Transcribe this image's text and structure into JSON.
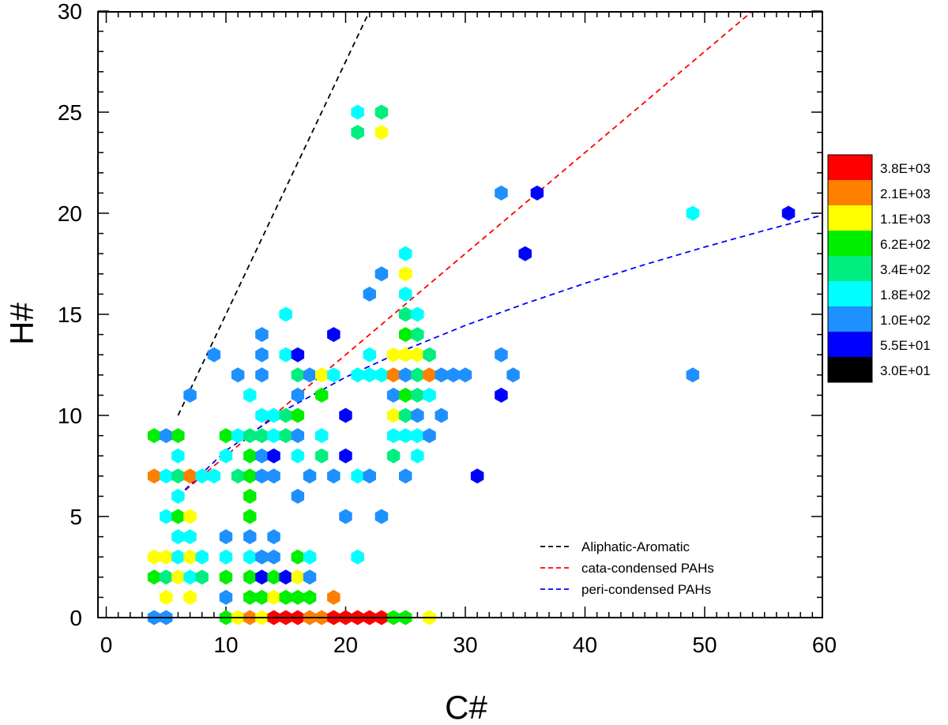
{
  "chart_data": {
    "type": "scatter",
    "subtype": "hexbin",
    "xlabel": "C#",
    "ylabel": "H#",
    "xlim": [
      0,
      60
    ],
    "ylim": [
      0,
      30
    ],
    "x_ticks": [
      0,
      10,
      20,
      30,
      40,
      50,
      60
    ],
    "y_ticks": [
      0,
      5,
      10,
      15,
      20,
      25,
      30
    ],
    "x_tick_labels": [
      "0",
      "10",
      "20",
      "30",
      "40",
      "50",
      "60"
    ],
    "y_tick_labels": [
      "0",
      "5",
      "10",
      "15",
      "20",
      "25",
      "30"
    ],
    "colorbar": {
      "labels": [
        "3.8E+03",
        "2.1E+03",
        "1.1E+03",
        "6.2E+02",
        "3.4E+02",
        "1.8E+02",
        "1.0E+02",
        "5.5E+01",
        "3.0E+01"
      ],
      "colors": [
        "#ff0000",
        "#ff8000",
        "#ffff00",
        "#00ee00",
        "#00ee80",
        "#00ffff",
        "#1e90ff",
        "#0000ff",
        "#000000"
      ]
    },
    "lines": [
      {
        "name": "Aliphatic-Aromatic",
        "color": "#000000",
        "x": [
          6,
          22
        ],
        "y": [
          10,
          30
        ]
      },
      {
        "name": "cata-condensed PAHs",
        "color": "#ff0000",
        "x": [
          6,
          54
        ],
        "y": [
          6,
          30
        ]
      },
      {
        "name": "peri-condensed PAHs",
        "color": "#0000ff",
        "x": [
          6,
          10,
          15,
          20,
          25,
          30,
          35,
          40,
          45,
          50,
          55,
          60
        ],
        "y": [
          6,
          8.26,
          10.29,
          11.89,
          13.25,
          14.45,
          15.53,
          16.53,
          17.46,
          18.33,
          19.15,
          19.93
        ]
      }
    ],
    "legend": {
      "position": "bottom-right",
      "entries": [
        "Aliphatic-Aromatic",
        "cata-condensed PAHs",
        "peri-condensed PAHs"
      ]
    },
    "color_key": {
      "r": "#ff0000",
      "o": "#ff8000",
      "y": "#ffff00",
      "g": "#00ee00",
      "t": "#00ee80",
      "c": "#00ffff",
      "l": "#1e90ff",
      "b": "#0000ff"
    },
    "points": [
      [
        4,
        0,
        "l"
      ],
      [
        5,
        0,
        "l"
      ],
      [
        10,
        0,
        "g"
      ],
      [
        11,
        0,
        "y"
      ],
      [
        12,
        0,
        "o"
      ],
      [
        13,
        0,
        "y"
      ],
      [
        14,
        0,
        "r"
      ],
      [
        15,
        0,
        "r"
      ],
      [
        16,
        0,
        "r"
      ],
      [
        17,
        0,
        "o"
      ],
      [
        18,
        0,
        "o"
      ],
      [
        19,
        0,
        "r"
      ],
      [
        20,
        0,
        "r"
      ],
      [
        21,
        0,
        "r"
      ],
      [
        22,
        0,
        "r"
      ],
      [
        23,
        0,
        "r"
      ],
      [
        24,
        0,
        "g"
      ],
      [
        25,
        0,
        "g"
      ],
      [
        27,
        0,
        "y"
      ],
      [
        5,
        1,
        "y"
      ],
      [
        7,
        1,
        "y"
      ],
      [
        10,
        1,
        "l"
      ],
      [
        12,
        1,
        "g"
      ],
      [
        13,
        1,
        "g"
      ],
      [
        14,
        1,
        "y"
      ],
      [
        15,
        1,
        "g"
      ],
      [
        16,
        1,
        "g"
      ],
      [
        17,
        1,
        "g"
      ],
      [
        19,
        1,
        "o"
      ],
      [
        4,
        2,
        "g"
      ],
      [
        5,
        2,
        "t"
      ],
      [
        6,
        2,
        "y"
      ],
      [
        7,
        2,
        "c"
      ],
      [
        8,
        2,
        "t"
      ],
      [
        10,
        2,
        "g"
      ],
      [
        12,
        2,
        "g"
      ],
      [
        13,
        2,
        "b"
      ],
      [
        14,
        2,
        "g"
      ],
      [
        15,
        2,
        "b"
      ],
      [
        16,
        2,
        "y"
      ],
      [
        17,
        2,
        "l"
      ],
      [
        4,
        3,
        "y"
      ],
      [
        5,
        3,
        "y"
      ],
      [
        6,
        3,
        "c"
      ],
      [
        7,
        3,
        "y"
      ],
      [
        8,
        3,
        "c"
      ],
      [
        10,
        3,
        "c"
      ],
      [
        12,
        3,
        "c"
      ],
      [
        13,
        3,
        "l"
      ],
      [
        14,
        3,
        "l"
      ],
      [
        16,
        3,
        "g"
      ],
      [
        17,
        3,
        "c"
      ],
      [
        21,
        3,
        "c"
      ],
      [
        6,
        4,
        "c"
      ],
      [
        7,
        4,
        "c"
      ],
      [
        10,
        4,
        "l"
      ],
      [
        12,
        4,
        "l"
      ],
      [
        14,
        4,
        "l"
      ],
      [
        5,
        5,
        "c"
      ],
      [
        6,
        5,
        "g"
      ],
      [
        7,
        5,
        "y"
      ],
      [
        12,
        5,
        "g"
      ],
      [
        20,
        5,
        "l"
      ],
      [
        23,
        5,
        "l"
      ],
      [
        6,
        6,
        "c"
      ],
      [
        12,
        6,
        "g"
      ],
      [
        16,
        6,
        "l"
      ],
      [
        4,
        7,
        "o"
      ],
      [
        5,
        7,
        "c"
      ],
      [
        6,
        7,
        "t"
      ],
      [
        7,
        7,
        "o"
      ],
      [
        8,
        7,
        "c"
      ],
      [
        9,
        7,
        "c"
      ],
      [
        11,
        7,
        "t"
      ],
      [
        12,
        7,
        "g"
      ],
      [
        13,
        7,
        "l"
      ],
      [
        14,
        7,
        "l"
      ],
      [
        17,
        7,
        "l"
      ],
      [
        19,
        7,
        "l"
      ],
      [
        21,
        7,
        "c"
      ],
      [
        22,
        7,
        "l"
      ],
      [
        25,
        7,
        "l"
      ],
      [
        31,
        7,
        "b"
      ],
      [
        6,
        8,
        "c"
      ],
      [
        10,
        8,
        "c"
      ],
      [
        12,
        8,
        "g"
      ],
      [
        13,
        8,
        "l"
      ],
      [
        14,
        8,
        "b"
      ],
      [
        16,
        8,
        "c"
      ],
      [
        18,
        8,
        "t"
      ],
      [
        20,
        8,
        "b"
      ],
      [
        24,
        8,
        "t"
      ],
      [
        26,
        8,
        "c"
      ],
      [
        4,
        9,
        "g"
      ],
      [
        5,
        9,
        "l"
      ],
      [
        6,
        9,
        "g"
      ],
      [
        10,
        9,
        "g"
      ],
      [
        11,
        9,
        "c"
      ],
      [
        12,
        9,
        "t"
      ],
      [
        13,
        9,
        "t"
      ],
      [
        14,
        9,
        "c"
      ],
      [
        15,
        9,
        "t"
      ],
      [
        16,
        9,
        "l"
      ],
      [
        18,
        9,
        "c"
      ],
      [
        24,
        9,
        "c"
      ],
      [
        25,
        9,
        "c"
      ],
      [
        26,
        9,
        "c"
      ],
      [
        27,
        9,
        "l"
      ],
      [
        13,
        10,
        "c"
      ],
      [
        14,
        10,
        "c"
      ],
      [
        15,
        10,
        "t"
      ],
      [
        16,
        10,
        "g"
      ],
      [
        20,
        10,
        "b"
      ],
      [
        24,
        10,
        "y"
      ],
      [
        25,
        10,
        "t"
      ],
      [
        26,
        10,
        "l"
      ],
      [
        28,
        10,
        "l"
      ],
      [
        7,
        11,
        "l"
      ],
      [
        12,
        11,
        "c"
      ],
      [
        16,
        11,
        "l"
      ],
      [
        18,
        11,
        "g"
      ],
      [
        24,
        11,
        "l"
      ],
      [
        25,
        11,
        "g"
      ],
      [
        26,
        11,
        "t"
      ],
      [
        27,
        11,
        "c"
      ],
      [
        33,
        11,
        "b"
      ],
      [
        11,
        12,
        "l"
      ],
      [
        13,
        12,
        "l"
      ],
      [
        16,
        12,
        "t"
      ],
      [
        17,
        12,
        "l"
      ],
      [
        18,
        12,
        "y"
      ],
      [
        19,
        12,
        "c"
      ],
      [
        21,
        12,
        "c"
      ],
      [
        22,
        12,
        "c"
      ],
      [
        23,
        12,
        "c"
      ],
      [
        24,
        12,
        "o"
      ],
      [
        25,
        12,
        "l"
      ],
      [
        26,
        12,
        "t"
      ],
      [
        27,
        12,
        "o"
      ],
      [
        28,
        12,
        "l"
      ],
      [
        29,
        12,
        "l"
      ],
      [
        30,
        12,
        "l"
      ],
      [
        34,
        12,
        "l"
      ],
      [
        49,
        12,
        "l"
      ],
      [
        9,
        13,
        "l"
      ],
      [
        13,
        13,
        "l"
      ],
      [
        15,
        13,
        "c"
      ],
      [
        16,
        13,
        "b"
      ],
      [
        22,
        13,
        "c"
      ],
      [
        24,
        13,
        "y"
      ],
      [
        25,
        13,
        "y"
      ],
      [
        26,
        13,
        "y"
      ],
      [
        27,
        13,
        "t"
      ],
      [
        33,
        13,
        "l"
      ],
      [
        13,
        14,
        "l"
      ],
      [
        19,
        14,
        "b"
      ],
      [
        25,
        14,
        "g"
      ],
      [
        26,
        14,
        "t"
      ],
      [
        15,
        15,
        "c"
      ],
      [
        25,
        15,
        "t"
      ],
      [
        26,
        15,
        "c"
      ],
      [
        22,
        16,
        "l"
      ],
      [
        25,
        16,
        "c"
      ],
      [
        23,
        17,
        "l"
      ],
      [
        25,
        17,
        "y"
      ],
      [
        25,
        18,
        "c"
      ],
      [
        35,
        18,
        "b"
      ],
      [
        33,
        21,
        "l"
      ],
      [
        36,
        21,
        "b"
      ],
      [
        49,
        20,
        "c"
      ],
      [
        57,
        20,
        "b"
      ],
      [
        21,
        24,
        "t"
      ],
      [
        23,
        24,
        "y"
      ],
      [
        21,
        25,
        "c"
      ],
      [
        23,
        25,
        "t"
      ]
    ]
  }
}
